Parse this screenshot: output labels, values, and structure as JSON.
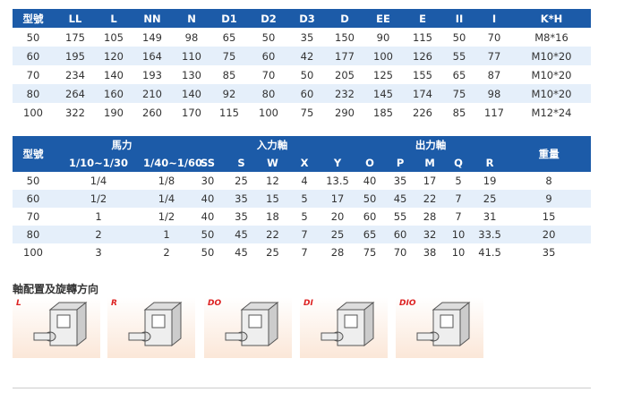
{
  "table1": {
    "headers": [
      "型號",
      "LL",
      "L",
      "NN",
      "N",
      "D1",
      "D2",
      "D3",
      "D",
      "EE",
      "E",
      "II",
      "I",
      "K*H"
    ],
    "rows": [
      [
        "50",
        "175",
        "105",
        "149",
        "98",
        "65",
        "50",
        "35",
        "150",
        "90",
        "115",
        "50",
        "70",
        "M8*16"
      ],
      [
        "60",
        "195",
        "120",
        "164",
        "110",
        "75",
        "60",
        "42",
        "177",
        "100",
        "126",
        "55",
        "77",
        "M10*20"
      ],
      [
        "70",
        "234",
        "140",
        "193",
        "130",
        "85",
        "70",
        "50",
        "205",
        "125",
        "155",
        "65",
        "87",
        "M10*20"
      ],
      [
        "80",
        "264",
        "160",
        "210",
        "140",
        "92",
        "80",
        "60",
        "232",
        "145",
        "174",
        "75",
        "98",
        "M10*20"
      ],
      [
        "100",
        "322",
        "190",
        "260",
        "170",
        "115",
        "100",
        "75",
        "290",
        "185",
        "226",
        "85",
        "117",
        "M12*24"
      ]
    ]
  },
  "table2": {
    "group_headers": [
      "型號",
      "馬力",
      "入力軸",
      "出力軸",
      "重量"
    ],
    "headers": [
      "1/10~1/30",
      "1/40~1/60",
      "SS",
      "S",
      "W",
      "X",
      "Y",
      "O",
      "P",
      "M",
      "Q",
      "R"
    ],
    "rows": [
      [
        "50",
        "1/4",
        "1/8",
        "30",
        "25",
        "12",
        "4",
        "13.5",
        "40",
        "35",
        "17",
        "5",
        "19",
        "8"
      ],
      [
        "60",
        "1/2",
        "1/4",
        "40",
        "35",
        "15",
        "5",
        "17",
        "50",
        "45",
        "22",
        "7",
        "25",
        "9"
      ],
      [
        "70",
        "1",
        "1/2",
        "40",
        "35",
        "18",
        "5",
        "20",
        "60",
        "55",
        "28",
        "7",
        "31",
        "15"
      ],
      [
        "80",
        "2",
        "1",
        "50",
        "45",
        "22",
        "7",
        "25",
        "65",
        "60",
        "32",
        "10",
        "33.5",
        "20"
      ],
      [
        "100",
        "3",
        "2",
        "50",
        "45",
        "25",
        "7",
        "28",
        "75",
        "70",
        "38",
        "10",
        "41.5",
        "35"
      ]
    ]
  },
  "section": {
    "title": "軸配置及旋轉方向",
    "labels": [
      "L",
      "R",
      "DO",
      "DI",
      "DIO"
    ]
  }
}
